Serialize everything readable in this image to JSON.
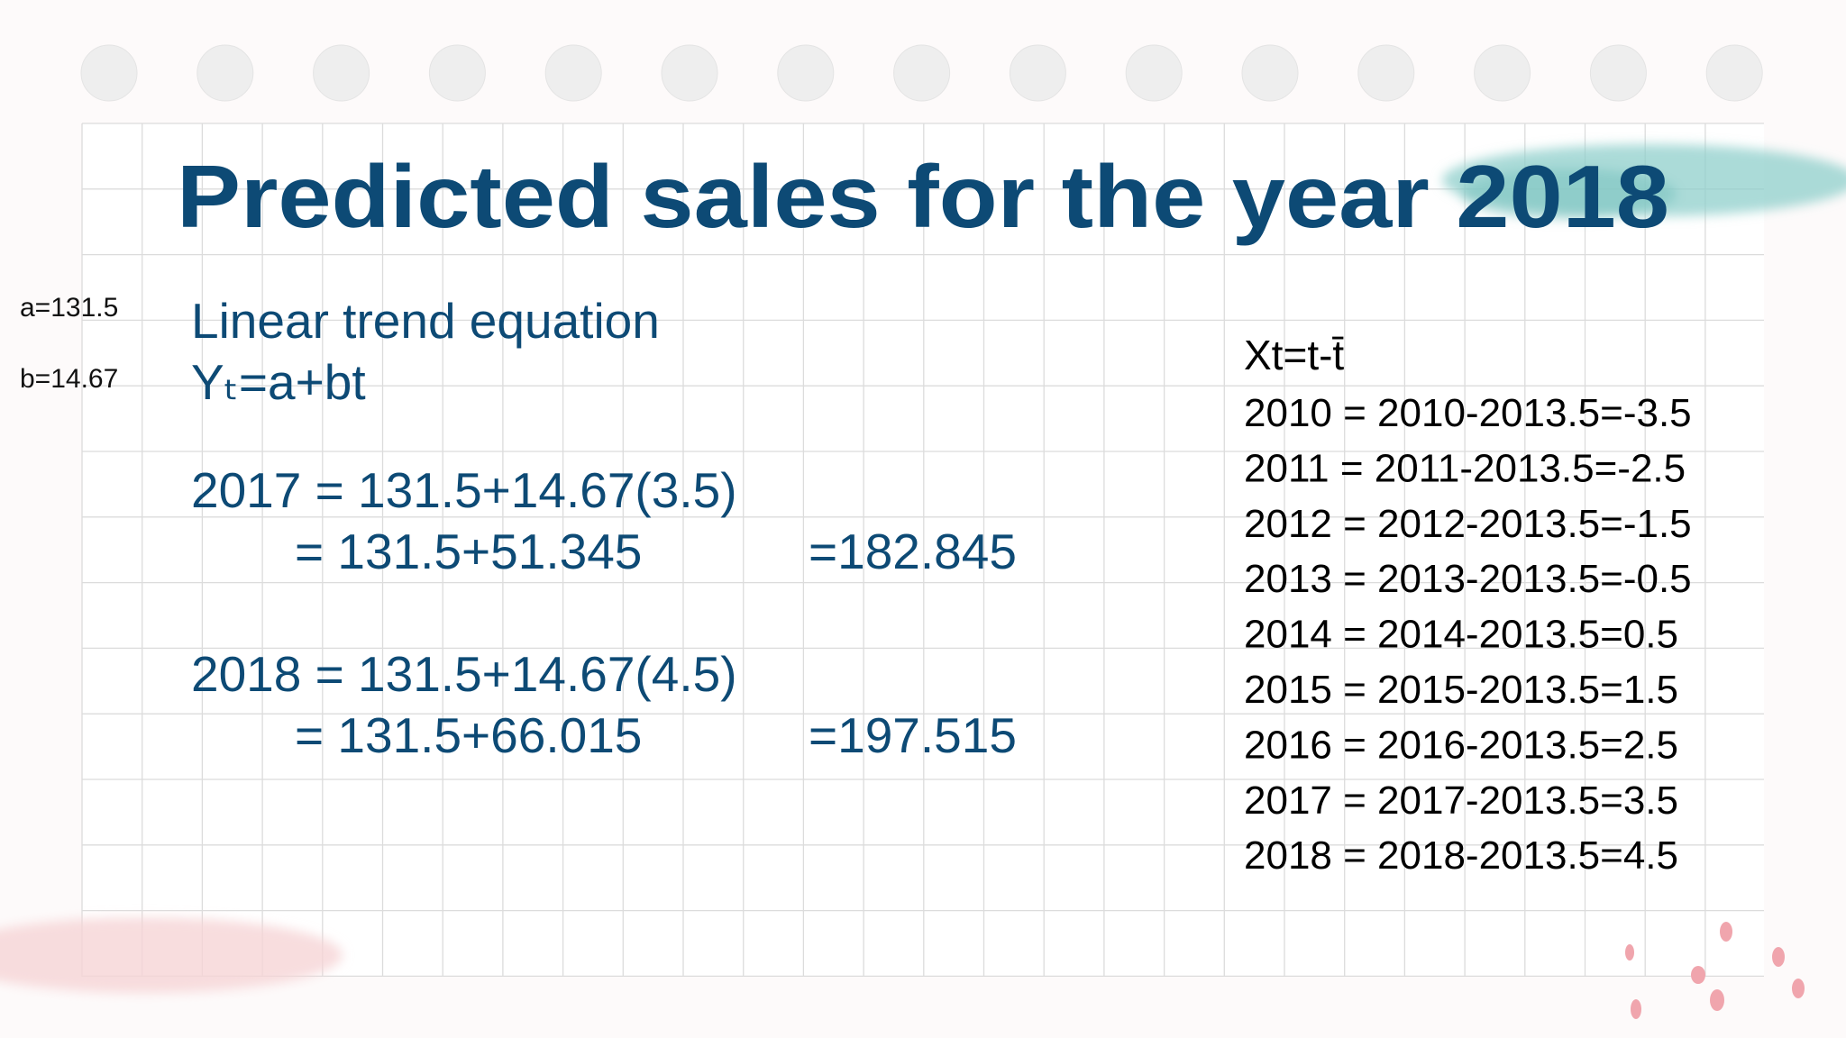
{
  "title": "Predicted sales for the year 2018",
  "parameters": [
    "a=131.5",
    "b=14.67"
  ],
  "equation": {
    "heading": "Linear trend equation",
    "formula": "Yₜ=a+bt"
  },
  "predictions": [
    {
      "line1": "2017 = 131.5+14.67(3.5)",
      "line2": "= 131.5+51.345",
      "result": "=182.845"
    },
    {
      "line1": "2018 = 131.5+14.67(4.5)",
      "line2": "= 131.5+66.015",
      "result": "=197.515"
    }
  ],
  "coding": {
    "heading": "Xt=t-t̄",
    "rows": [
      "2010 = 2010-2013.5=-3.5",
      "2011 = 2011-2013.5=-2.5",
      "2012 = 2012-2013.5=-1.5",
      "2013 = 2013-2013.5=-0.5",
      "2014 = 2014-2013.5=0.5",
      "2015 = 2015-2013.5=1.5",
      "2016 = 2016-2013.5=2.5",
      "2017 = 2017-2013.5=3.5",
      "2018 = 2018-2013.5=4.5"
    ]
  }
}
